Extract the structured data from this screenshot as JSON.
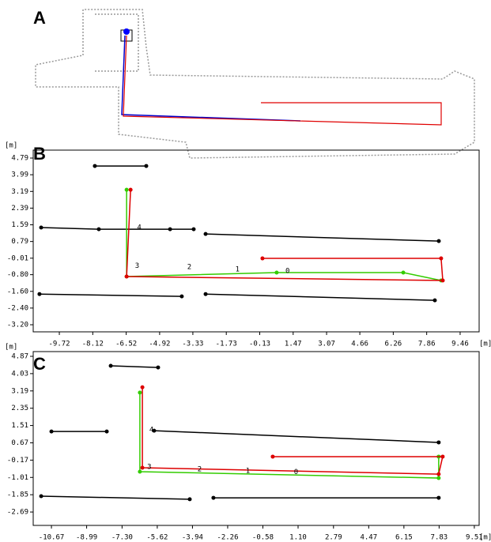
{
  "panel_labels": [
    "A",
    "B",
    "C"
  ],
  "chart_data": [
    {
      "type": "line",
      "x_unit": "[m]",
      "y_unit": "[m]",
      "xlim": [
        -10.97,
        10.37
      ],
      "ylim": [
        -3.54,
        5.17
      ],
      "xticks": [
        -9.72,
        -8.12,
        -6.52,
        -4.92,
        -3.33,
        -1.73,
        -0.13,
        1.47,
        3.07,
        4.66,
        6.26,
        7.86,
        9.46
      ],
      "yticks": [
        4.79,
        3.99,
        3.19,
        2.39,
        1.59,
        0.79,
        -0.01,
        {
          "value": -0.8,
          "label": "-0.80"
        },
        {
          "value": -1.6,
          "label": "-1.60"
        },
        {
          "value": -2.4,
          "label": "-2.40"
        },
        {
          "value": -3.2,
          "label": "-3.20"
        }
      ],
      "series": [
        {
          "color": "#000000",
          "x": [
            -8.02,
            -5.56,
            null,
            -10.59,
            -7.83,
            -4.42,
            -3.29,
            null,
            -2.72,
            8.44,
            null,
            -10.67,
            -3.86,
            null,
            -2.72,
            8.25
          ],
          "values": [
            4.41,
            4.41,
            null,
            1.46,
            1.38,
            1.38,
            1.38,
            null,
            1.15,
            0.81,
            null,
            -1.73,
            -1.84,
            null,
            -1.73,
            -2.03
          ]
        },
        {
          "color": "#33cc00",
          "x": [
            -6.5,
            -6.5,
            0.68,
            6.74,
            8.55
          ],
          "values": [
            3.27,
            -0.89,
            -0.7,
            -0.7,
            -1.08
          ]
        },
        {
          "color": "#dd0000",
          "x": [
            -6.31,
            -6.5,
            8.63,
            8.55,
            0.0
          ],
          "values": [
            3.27,
            -0.89,
            -1.08,
            -0.02,
            -0.02
          ]
        }
      ],
      "annotations": [
        {
          "text": "4",
          "x": -6.0,
          "y": 1.46
        },
        {
          "text": "3",
          "x": -6.1,
          "y": -0.38
        },
        {
          "text": "2",
          "x": -3.6,
          "y": -0.43
        },
        {
          "text": "1",
          "x": -1.3,
          "y": -0.55
        },
        {
          "text": "0",
          "x": 1.1,
          "y": -0.62
        }
      ]
    },
    {
      "type": "line",
      "x_unit": "[m]",
      "y_unit": "[m]",
      "xlim": [
        -11.54,
        9.74
      ],
      "ylim": [
        -3.34,
        5.1
      ],
      "xticks": [
        -10.67,
        -8.99,
        {
          "value": -7.3,
          "label": "-7.30"
        },
        -5.62,
        -3.94,
        -2.26,
        -0.58,
        {
          "value": 1.1,
          "label": "1.10"
        },
        2.79,
        4.47,
        6.15,
        7.83,
        9.51
      ],
      "yticks": [
        4.87,
        4.03,
        3.19,
        2.35,
        1.51,
        0.67,
        -0.17,
        -1.01,
        -1.85,
        -2.69
      ],
      "series": [
        {
          "color": "#000000",
          "x": [
            -10.67,
            -8.03,
            null,
            -5.77,
            7.81,
            null,
            -11.16,
            -4.07,
            null,
            -2.94,
            7.81,
            null,
            -7.84,
            -5.58
          ],
          "values": [
            1.22,
            1.22,
            null,
            1.26,
            0.69,
            null,
            -1.92,
            -2.07,
            null,
            -2.0,
            -2.0,
            null,
            4.41,
            4.33
          ]
        },
        {
          "color": "#33cc00",
          "x": [
            -6.45,
            -6.45,
            7.81,
            7.81
          ],
          "values": [
            3.11,
            -0.73,
            -1.04,
            -0.0
          ]
        },
        {
          "color": "#dd0000",
          "x": [
            -6.33,
            -6.33,
            7.81,
            8.0,
            -0.11
          ],
          "values": [
            3.37,
            -0.54,
            -0.85,
            -0.0,
            -0.0
          ]
        }
      ],
      "annotations": [
        {
          "text": "4",
          "x": -6.0,
          "y": 1.3
        },
        {
          "text": "3",
          "x": -6.1,
          "y": -0.5
        },
        {
          "text": "2",
          "x": -3.7,
          "y": -0.62
        },
        {
          "text": "1",
          "x": -1.4,
          "y": -0.7
        },
        {
          "text": "0",
          "x": 0.9,
          "y": -0.75
        }
      ]
    }
  ]
}
